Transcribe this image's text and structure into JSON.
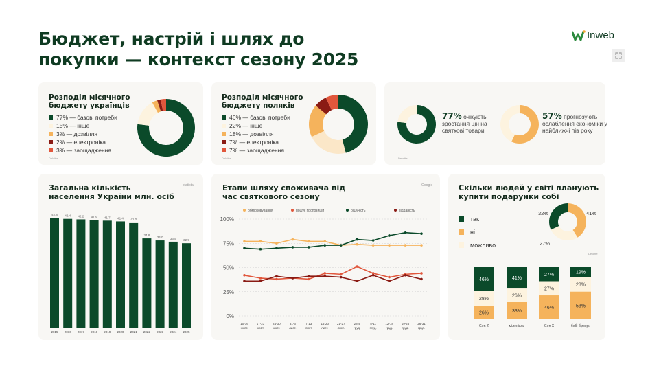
{
  "header": {
    "title_line1": "Бюджет, настрій і шлях до",
    "title_line2": "покупки — контекст сезону 2025",
    "logo_text": "Inweb"
  },
  "colors": {
    "dark_green": "#0b4a2a",
    "orange": "#f5b35c",
    "cream": "#fdf3df",
    "red": "#e1573c",
    "dark_red": "#8a1b14"
  },
  "budget_ua": {
    "title": "Розподіл місячного бюджету українців",
    "source": "Deloitte",
    "chart_data": {
      "type": "pie",
      "title": "Розподіл місячного бюджету українців",
      "labels": [
        "базові потреби",
        "інше",
        "дозвілля",
        "електроніка",
        "заощадження"
      ],
      "values": [
        77,
        15,
        3,
        2,
        3
      ],
      "legend_text": [
        "77% — базові потреби",
        "15% — інше",
        "3% — дозвілля",
        "2% — електроніка",
        "3% — заощадження"
      ]
    }
  },
  "budget_pl": {
    "title": "Розподіл місячного бюджету поляків",
    "source": "Deloitte",
    "chart_data": {
      "type": "pie",
      "title": "Розподіл місячного бюджету поляків",
      "labels": [
        "базові потреби",
        "інше",
        "дозвілля",
        "електроніка",
        "заощадження"
      ],
      "values": [
        46,
        22,
        18,
        7,
        7
      ],
      "legend_text": [
        "46% — базові потреби",
        "22% — інше",
        "18% — дозвілля",
        "7% — електроніка",
        "7% — заощадження"
      ]
    }
  },
  "expectations": {
    "source": "Deloitte",
    "stat1": {
      "value": 77,
      "pct": "77%",
      "text": "очікують зростання цін на святкові товари"
    },
    "stat2": {
      "value": 57,
      "pct": "57%",
      "text": "прогнозують ослаблення економіки у найближчі пів року"
    }
  },
  "population": {
    "title": "Загальна кількість населення України млн. осіб",
    "source": "statista",
    "chart_data": {
      "type": "bar",
      "title": "Загальна кількість населення України млн. осіб",
      "categories": [
        "2015",
        "2016",
        "2017",
        "2018",
        "2019",
        "2020",
        "2021",
        "2022",
        "2023",
        "2024",
        "2025"
      ],
      "values": [
        42.8,
        42.4,
        42.2,
        41.9,
        41.7,
        41.4,
        41.0,
        34.8,
        34.0,
        33.5,
        32.9
      ],
      "labels": [
        "42.8",
        "42.4",
        "42.2",
        "41.9",
        "41.7",
        "41.4",
        "41.0",
        "34.8",
        "34.0",
        "33.5",
        "32.9"
      ],
      "ylim": [
        0,
        45
      ]
    }
  },
  "journey": {
    "title": "Етапи шляху споживача під час святкового сезону",
    "source": "Google",
    "chart_data": {
      "type": "line",
      "title": "Етапи шляху споживача під час святкового сезону",
      "yticks": [
        "100%",
        "75%",
        "50%",
        "25%",
        "0%"
      ],
      "ylim": [
        0,
        100
      ],
      "x": [
        [
          "10-16",
          "жовт."
        ],
        [
          "17-23",
          "жовт."
        ],
        [
          "24-30",
          "жовт."
        ],
        [
          "31-6",
          "лист."
        ],
        [
          "7-13",
          "лист."
        ],
        [
          "14-20",
          "лист."
        ],
        [
          "21-27",
          "лист."
        ],
        [
          "28-4",
          "груд."
        ],
        [
          "5-11",
          "груд."
        ],
        [
          "12-18",
          "груд."
        ],
        [
          "19-25",
          "груд."
        ],
        [
          "26-31",
          "груд."
        ]
      ],
      "series": [
        {
          "name": "обмірковування",
          "color": "#f5b35c",
          "values": [
            77,
            77,
            75,
            79,
            77,
            77,
            73,
            74,
            73,
            73,
            73,
            73
          ]
        },
        {
          "name": "пошук пропозицій",
          "color": "#e1573c",
          "values": [
            42,
            39,
            38,
            39,
            38,
            44,
            43,
            51,
            44,
            40,
            43,
            44
          ]
        },
        {
          "name": "рішучість",
          "color": "#0b4a2a",
          "values": [
            70,
            69,
            70,
            71,
            71,
            73,
            73,
            79,
            78,
            83,
            86,
            85
          ]
        },
        {
          "name": "відданість",
          "color": "#8a1b14",
          "values": [
            36,
            36,
            41,
            39,
            41,
            41,
            40,
            36,
            42,
            36,
            42,
            38
          ]
        }
      ]
    }
  },
  "gifts": {
    "title": "Скільки людей у світі планують купити подарунки собі",
    "source": "Deloitte",
    "legend": [
      "так",
      "ні",
      "можливо"
    ],
    "donut": {
      "chart_data": {
        "type": "pie",
        "labels": [
          "так",
          "ні",
          "можливо"
        ],
        "values": [
          32,
          41,
          27
        ],
        "value_labels": [
          "32%",
          "41%",
          "27%"
        ]
      }
    },
    "stacked": {
      "chart_data": {
        "type": "bar",
        "stacked": true,
        "categories": [
          "Gen Z",
          "міленіали",
          "Gen X",
          "бебі-бумери"
        ],
        "series": [
          {
            "name": "так",
            "values": [
              46,
              41,
              27,
              19
            ],
            "labels": [
              "46%",
              "41%",
              "27%",
              "19%"
            ]
          },
          {
            "name": "можливо",
            "values": [
              28,
              26,
              27,
              28
            ],
            "labels": [
              "28%",
              "26%",
              "27%",
              "28%"
            ]
          },
          {
            "name": "ні",
            "values": [
              26,
              33,
              46,
              53
            ],
            "labels": [
              "26%",
              "33%",
              "46%",
              "53%"
            ]
          }
        ]
      }
    }
  }
}
